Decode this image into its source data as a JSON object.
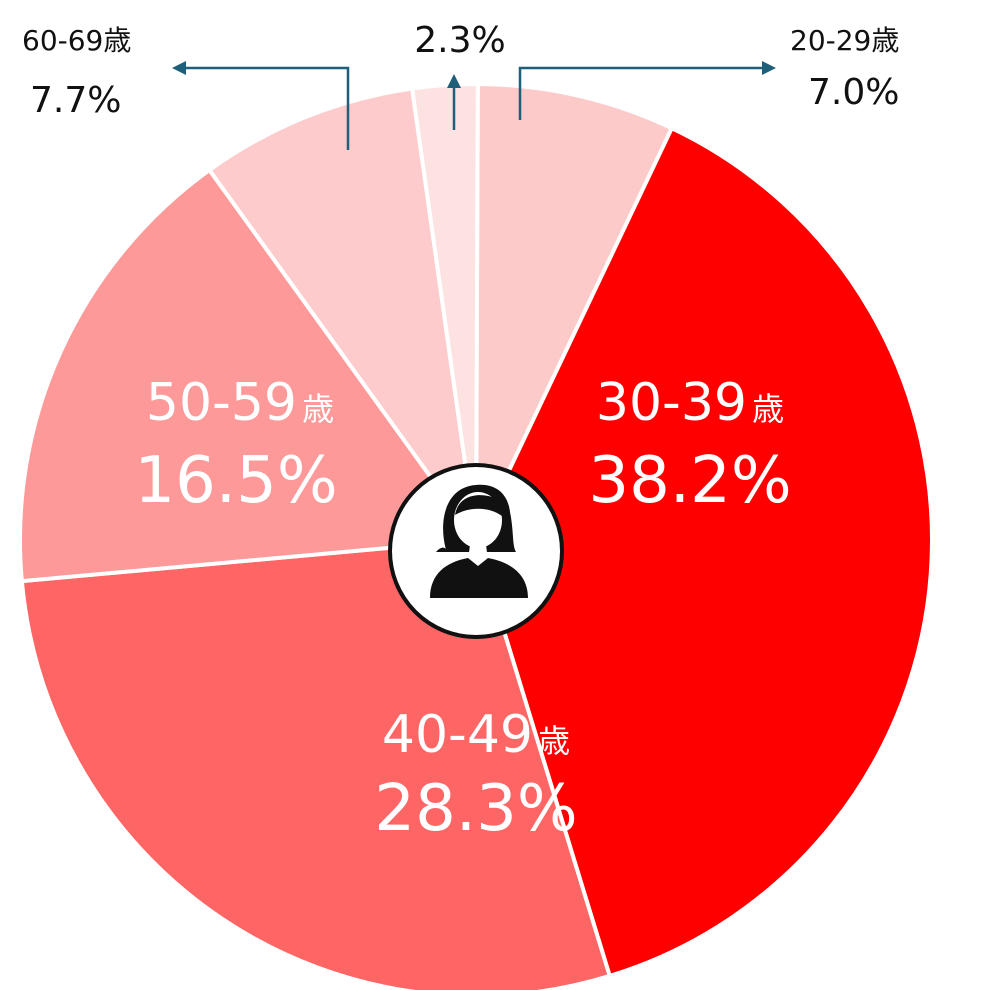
{
  "chart_data": {
    "type": "pie",
    "title": "",
    "slices": [
      {
        "label": "20-29歳",
        "value": 7.0,
        "display": "7.0%",
        "color": "#fdcaca"
      },
      {
        "label": "30-39歳",
        "value": 38.2,
        "display": "38.2%",
        "color": "#ff0000"
      },
      {
        "label": "40-49歳",
        "value": 28.3,
        "display": "28.3%",
        "color": "#fe6666"
      },
      {
        "label": "50-59歳",
        "value": 16.5,
        "display": "16.5%",
        "color": "#fd9999"
      },
      {
        "label": "60-69歳",
        "value": 7.7,
        "display": "7.7%",
        "color": "#fdcbcb"
      },
      {
        "label": "",
        "value": 2.3,
        "display": "2.3%",
        "color": "#fde2e2"
      }
    ],
    "center_icon": "woman-avatar-icon",
    "leader_color": "#1f5f7a"
  }
}
